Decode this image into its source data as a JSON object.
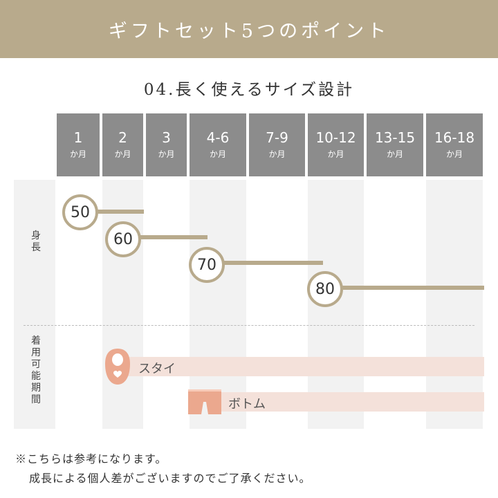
{
  "header": {
    "title": "ギフトセット5つのポイント"
  },
  "section": {
    "title": "04.長く使えるサイズ設計"
  },
  "columns": [
    {
      "num": "1",
      "unit": "か月"
    },
    {
      "num": "2",
      "unit": "か月"
    },
    {
      "num": "3",
      "unit": "か月"
    },
    {
      "num": "4-6",
      "unit": "か月"
    },
    {
      "num": "7-9",
      "unit": "か月"
    },
    {
      "num": "10-12",
      "unit": "か月"
    },
    {
      "num": "13-15",
      "unit": "か月"
    },
    {
      "num": "16-18",
      "unit": "か月"
    }
  ],
  "rows": {
    "height_label": "身長",
    "period_label": "着用可能期間"
  },
  "sizes": [
    {
      "label": "50",
      "from_col": 0,
      "to_col": 1
    },
    {
      "label": "60",
      "from_col": 1,
      "to_col": 3
    },
    {
      "label": "70",
      "from_col": 3,
      "to_col": 5
    },
    {
      "label": "80",
      "from_col": 5,
      "to_col": 7
    }
  ],
  "items": [
    {
      "label": "スタイ",
      "icon": "bib-icon",
      "from_col": 1,
      "to_col": 7
    },
    {
      "label": "ボトム",
      "icon": "pants-icon",
      "from_col": 3,
      "to_col": 7
    }
  ],
  "colors": {
    "accent": "#b8aa8c",
    "header_gray": "#8c8c8c",
    "band_pink": "#f4e1da",
    "icon_salmon": "#eba88e"
  },
  "notes": {
    "line1": "※こちらは参考になります。",
    "line2": "成長による個人差がございますのでご了承ください。"
  }
}
